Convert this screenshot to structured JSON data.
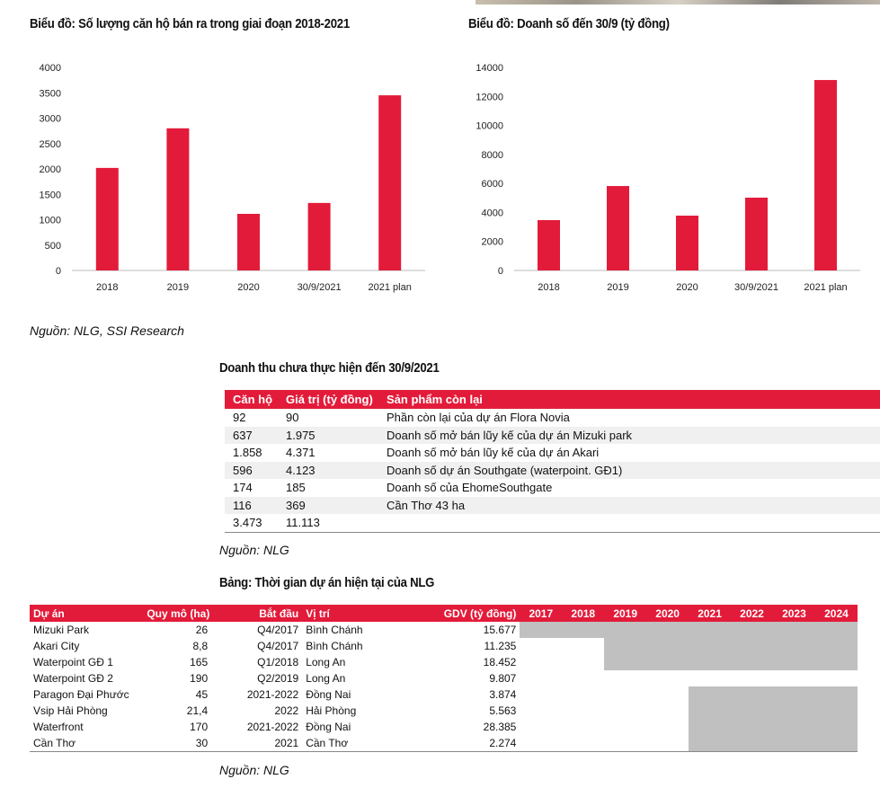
{
  "colors": {
    "accent": "#e31b3a",
    "gantt": "#c0c0c0"
  },
  "chart_data": [
    {
      "type": "bar",
      "title": "Biểu đồ: Số lượng căn hộ bán ra trong giai đoạn 2018-2021",
      "categories": [
        "2018",
        "2019",
        "2020",
        "30/9/2021",
        "2021 plan"
      ],
      "values": [
        2020,
        2800,
        1115,
        1330,
        3450
      ],
      "ylim": [
        0,
        4000
      ],
      "yticks": [
        "0",
        "500",
        "1000",
        "1500",
        "2000",
        "2500",
        "3000",
        "3500",
        "4000"
      ],
      "grid": false,
      "color": "#e31b3a"
    },
    {
      "type": "bar",
      "title": "Biểu đồ: Doanh số đến 30/9 (tỷ đồng)",
      "categories": [
        "2018",
        "2019",
        "2020",
        "30/9/2021",
        "2021 plan"
      ],
      "values": [
        3470,
        5820,
        3780,
        5020,
        13130
      ],
      "ylim": [
        0,
        14000
      ],
      "yticks": [
        "0",
        "2000",
        "4000",
        "6000",
        "8000",
        "10000",
        "12000",
        "14000"
      ],
      "grid": false,
      "color": "#e31b3a"
    }
  ],
  "source1": "Nguồn: NLG, SSI Research",
  "table1": {
    "title": "Doanh thu chưa thực hiện đến 30/9/2021",
    "headers": [
      "Căn hộ",
      "Giá trị (tỷ đồng)",
      "Sản phẩm còn lại"
    ],
    "rows": [
      [
        "92",
        "90",
        "Phần còn lại của dự án Flora Novia"
      ],
      [
        "637",
        "1.975",
        "Doanh số mở bán lũy kế của dự án Mizuki park"
      ],
      [
        "1.858",
        "4.371",
        "Doanh số mở bán lũy kế của dự án Akari"
      ],
      [
        "596",
        "4.123",
        "Doanh số dự án Southgate (waterpoint. GĐ1)"
      ],
      [
        "174",
        "185",
        "Doanh số của EhomeSouthgate"
      ],
      [
        "116",
        "369",
        "Cần Thơ 43 ha"
      ],
      [
        "3.473",
        "11.113",
        ""
      ]
    ],
    "source": "Nguồn: NLG"
  },
  "table2": {
    "title": "Bảng: Thời gian dự án hiện tại của NLG",
    "headers": [
      "Dự án",
      "Quy mô (ha)",
      "Bắt đầu",
      "Vị trí",
      "GDV (tỷ đồng)"
    ],
    "years": [
      "2017",
      "2018",
      "2019",
      "2020",
      "2021",
      "2022",
      "2023",
      "2024"
    ],
    "rows": [
      {
        "cells": [
          "Mizuki Park",
          "26",
          "Q4/2017",
          "Bình Chánh",
          "15.677"
        ],
        "active_from": "2017",
        "active_to": "2024"
      },
      {
        "cells": [
          "Akari City",
          "8,8",
          "Q4/2017",
          "Bình Chánh",
          "11.235"
        ],
        "active_from": "2019",
        "active_to": "2024"
      },
      {
        "cells": [
          "Waterpoint GĐ 1",
          "165",
          "Q1/2018",
          "Long An",
          "18.452"
        ],
        "active_from": "2019",
        "active_to": "2024"
      },
      {
        "cells": [
          "Waterpoint GĐ 2",
          "190",
          "Q2/2019",
          "Long An",
          "9.807"
        ],
        "active_from": null,
        "active_to": null
      },
      {
        "cells": [
          "Paragon Đại Phước",
          "45",
          "2021-2022",
          "Đồng Nai",
          "3.874"
        ],
        "active_from": "2021",
        "active_to": "2024"
      },
      {
        "cells": [
          "Vsip Hải Phòng",
          "21,4",
          "2022",
          "Hải Phòng",
          "5.563"
        ],
        "active_from": "2021",
        "active_to": "2024"
      },
      {
        "cells": [
          "Waterfront",
          "170",
          "2021-2022",
          "Đồng Nai",
          "28.385"
        ],
        "active_from": "2021",
        "active_to": "2024"
      },
      {
        "cells": [
          "Cần Thơ",
          "30",
          "2021",
          "Cần Thơ",
          "2.274"
        ],
        "active_from": "2021",
        "active_to": "2024"
      }
    ],
    "source": "Nguồn: NLG"
  }
}
